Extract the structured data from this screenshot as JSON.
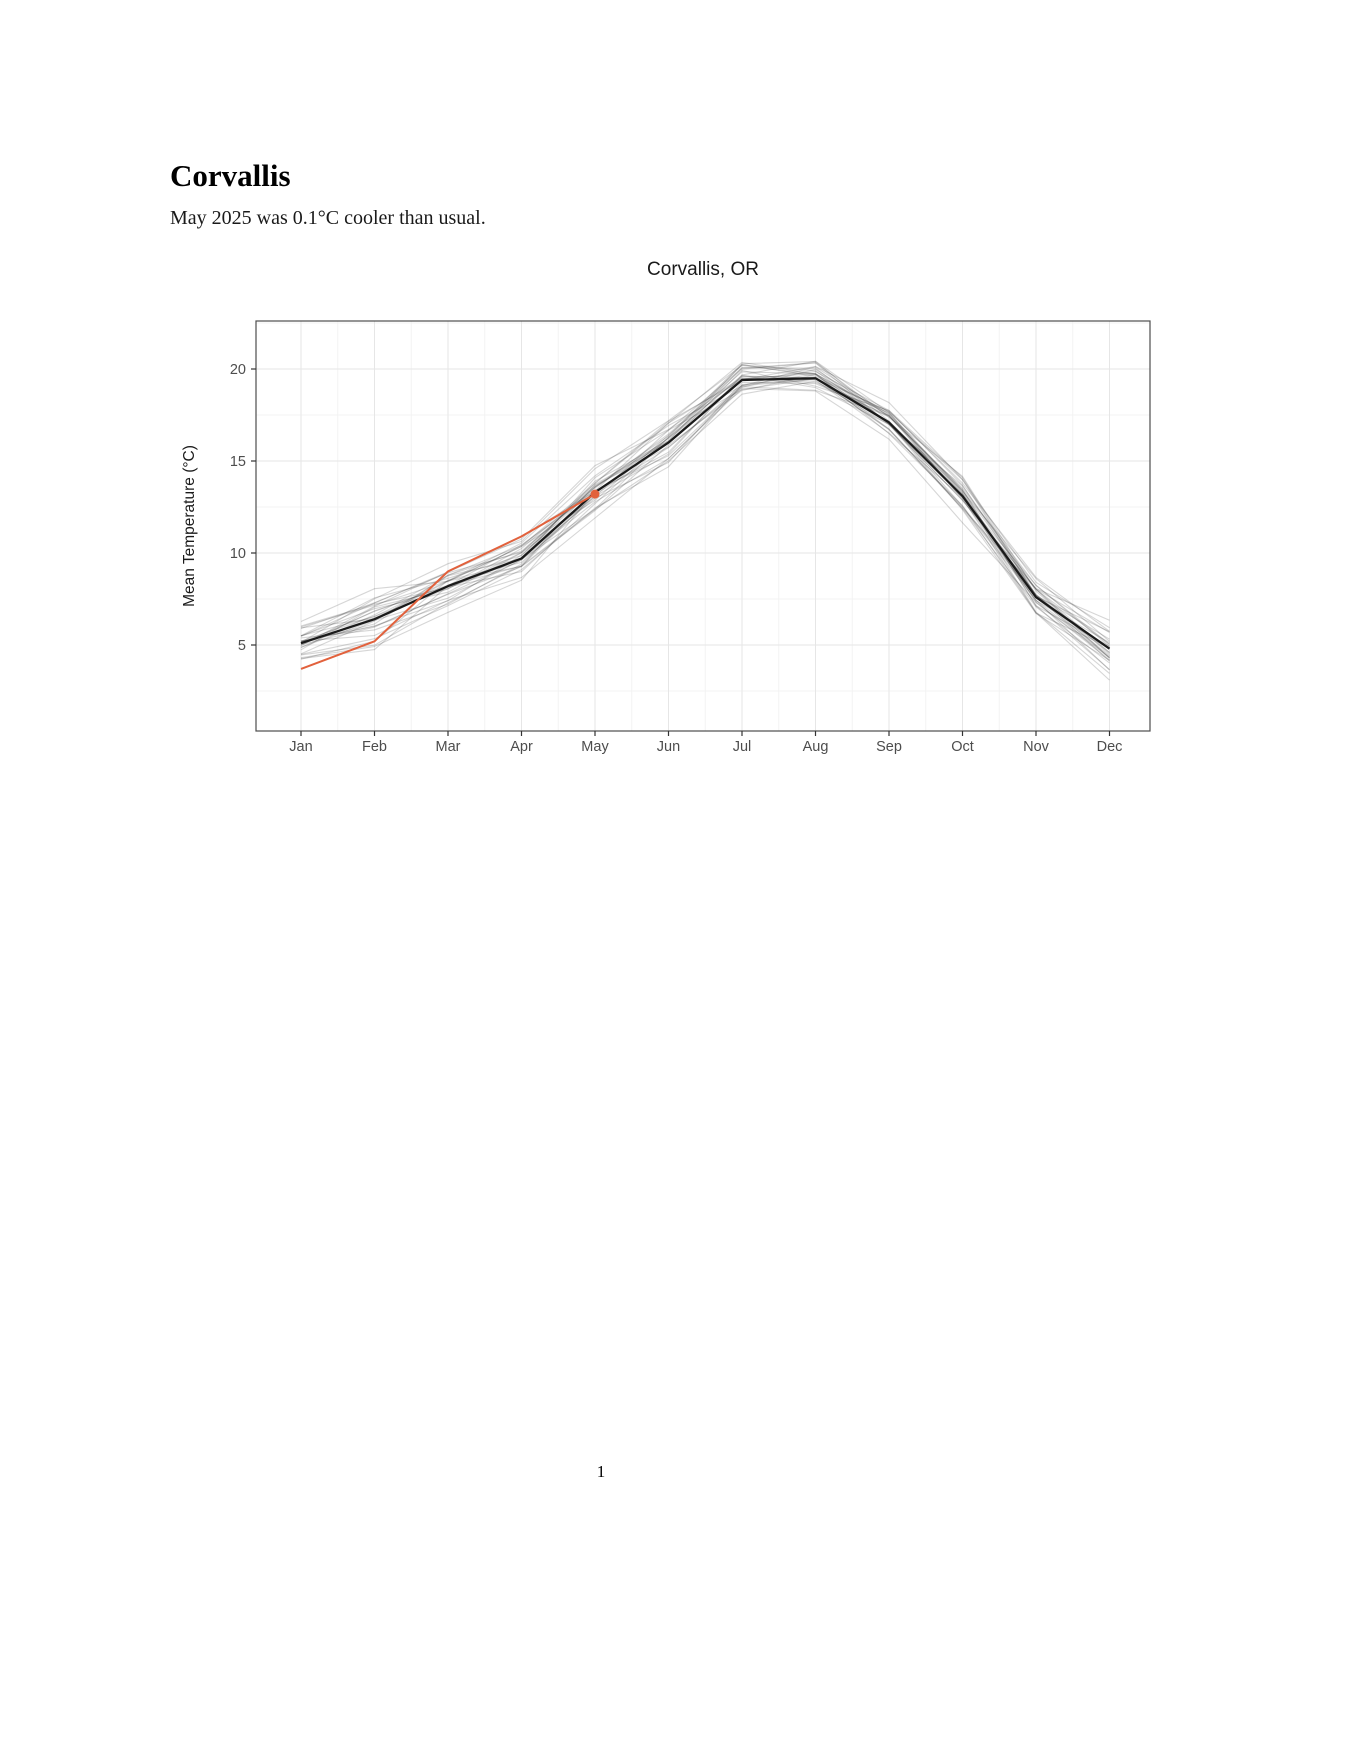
{
  "document": {
    "title": "Corvallis",
    "subtitle": "May 2025 was 0.1°C cooler than usual.",
    "page_number": "1"
  },
  "chart_data": {
    "type": "line",
    "title": "Corvallis, OR",
    "xlabel": "",
    "ylabel": "Mean Temperature (°C)",
    "categories": [
      "Jan",
      "Feb",
      "Mar",
      "Apr",
      "May",
      "Jun",
      "Jul",
      "Aug",
      "Sep",
      "Oct",
      "Nov",
      "Dec"
    ],
    "y_ticks": [
      5,
      10,
      15,
      20
    ],
    "y_minor_ticks": [
      2.5,
      7.5,
      12.5,
      17.5,
      22.5
    ],
    "ylim": [
      0.3,
      22.6
    ],
    "grid": "major and minor gridlines, light gray on white panel with dark gray border",
    "legend_position": "none",
    "series": [
      {
        "name": "historical-mean",
        "label": "Historical mean (thick black line)",
        "color": "#1a1a1a",
        "values": [
          5.1,
          6.4,
          8.2,
          9.7,
          13.3,
          16.0,
          19.4,
          19.5,
          17.1,
          13.1,
          7.6,
          4.8
        ]
      },
      {
        "name": "year-2025",
        "label": "2025 (orange line, Jan-May, dot at May)",
        "color": "#e2613c",
        "values": [
          3.7,
          5.2,
          9.0,
          10.9,
          13.2
        ],
        "endpoint_dot": true
      }
    ],
    "background_years": {
      "label": "individual historical years (thin translucent gray lines)",
      "count": 30,
      "color": "rgba(30,30,30,0.18)",
      "envelope_min": [
        4.0,
        3.4,
        5.7,
        7.8,
        11.2,
        13.8,
        17.9,
        18.3,
        15.4,
        10.6,
        5.3,
        1.9
      ],
      "envelope_max": [
        7.4,
        8.9,
        9.8,
        11.6,
        15.3,
        18.6,
        21.6,
        21.5,
        18.9,
        14.9,
        9.6,
        7.2
      ]
    }
  },
  "colors": {
    "accent_orange": "#e2613c",
    "mean_line": "#1a1a1a",
    "grid_major": "#e6e6e6",
    "grid_minor": "#f3f3f3",
    "panel_border": "#4d4d4d",
    "tick_mark": "#333333",
    "axis_text": "#4d4d4d",
    "background": "#ffffff"
  }
}
